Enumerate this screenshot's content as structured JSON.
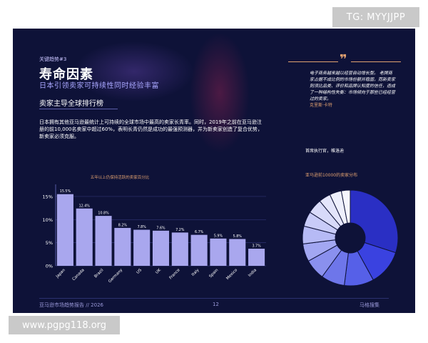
{
  "watermark_top": "TG: MYYJJPP",
  "watermark_bottom": "www.pgpg118.org",
  "page": {
    "kicker": "关键趋势#3",
    "title": "寿命因素",
    "subtitle": "日本引领卖家可持续性同时经验丰富",
    "section_title": "卖家主导全球排行榜",
    "body": "日本拥有其他亚马逊最统计上可持续的全球市场中最高的卖家长青率。同时，2019年之前在亚马逊注册的前10,000名卖家中超过60%，表明长青仍然是成功的最强预测器，并为新卖家创造了复合优势，新卖家必须克服。",
    "quote": {
      "text": "电子商务越来越以经营自动增长型。 老牌商家占据不成比例的市场份额并稳固，而新卖家则须比品类、评价和品牌认知度的信任，造成了一种结构性失衡：市场倾向于那些已经经营过的卖家。",
      "author": "克里斯·卡特"
    },
    "right_label_1": "首席执行官，帷洛迪",
    "right_label_2": "亚马逊前10000的卖家分布",
    "footer_left": "亚马逊市场趋势报告 // 2026",
    "footer_page": "12",
    "footer_right": "马格搜集"
  },
  "chart_data": [
    {
      "type": "bar",
      "title": "五年以上仍保持活跃的卖家百分比",
      "categories": [
        "Japan",
        "Canada",
        "Brazil",
        "Germany",
        "US",
        "UK",
        "France",
        "Italy",
        "Spain",
        "Mexico",
        "India"
      ],
      "values": [
        15.5,
        12.4,
        10.8,
        8.2,
        7.8,
        7.6,
        7.2,
        6.7,
        5.9,
        5.8,
        3.7
      ],
      "value_labels": [
        "15.5%",
        "12.4%",
        "10.8%",
        "8.2%",
        "7.8%",
        "7.6%",
        "7.2%",
        "6.7%",
        "5.9%",
        "5.8%",
        "3.7%"
      ],
      "yticks": [
        0,
        5,
        10,
        15
      ],
      "ytick_labels": [
        "0%",
        "5%",
        "10%",
        "15%"
      ],
      "ylim": [
        0,
        17
      ],
      "colors": {
        "bar": "#a9a7ee",
        "label": "#ffffff",
        "grid": "#2e3373"
      }
    },
    {
      "type": "pie",
      "variant": "donut",
      "values": [
        30,
        12,
        10,
        8,
        7,
        6,
        6,
        5,
        5,
        4,
        4,
        3
      ],
      "colors": [
        "#2a2fc4",
        "#3a42e0",
        "#5660e8",
        "#6e76ea",
        "#8a90ee",
        "#a2a7f2",
        "#b6baf5",
        "#c8cbf8",
        "#d8daf9",
        "#e4e5fb",
        "#eeeffc",
        "#f6f6fe"
      ]
    }
  ]
}
